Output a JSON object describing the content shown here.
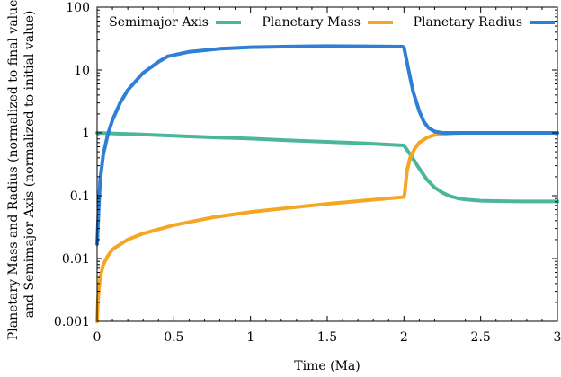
{
  "chart_data": {
    "type": "line",
    "title": "",
    "xlabel": "Time (Ma)",
    "ylabel_lines": [
      "Planetary Mass and Radius (normalized to final values)",
      "and Semimajor Axis (normalized to initial value)"
    ],
    "xlim": [
      0,
      3
    ],
    "ylim": [
      0.001,
      100
    ],
    "y_scale": "log",
    "grid": false,
    "legend_position": "top",
    "x_ticks": [
      {
        "value": 0,
        "label": "0"
      },
      {
        "value": 0.5,
        "label": "0.5"
      },
      {
        "value": 1,
        "label": "1"
      },
      {
        "value": 1.5,
        "label": "1.5"
      },
      {
        "value": 2,
        "label": "2"
      },
      {
        "value": 2.5,
        "label": "2.5"
      },
      {
        "value": 3,
        "label": "3"
      }
    ],
    "y_ticks": [
      {
        "value": 0.001,
        "label": "0.001"
      },
      {
        "value": 0.01,
        "label": "0.01"
      },
      {
        "value": 0.1,
        "label": "0.1"
      },
      {
        "value": 1,
        "label": "1"
      },
      {
        "value": 10,
        "label": "10"
      },
      {
        "value": 100,
        "label": "100"
      }
    ],
    "series": [
      {
        "name": "Semimajor Axis",
        "color": "#4bb69c",
        "x": [
          0,
          0.25,
          0.5,
          0.75,
          1.0,
          1.25,
          1.5,
          1.75,
          2.0,
          2.05,
          2.1,
          2.15,
          2.2,
          2.25,
          2.3,
          2.35,
          2.4,
          2.5,
          2.6,
          2.75,
          3.0
        ],
        "y": [
          1.0,
          0.95,
          0.9,
          0.85,
          0.81,
          0.76,
          0.72,
          0.68,
          0.63,
          0.42,
          0.27,
          0.18,
          0.135,
          0.112,
          0.098,
          0.091,
          0.087,
          0.083,
          0.082,
          0.081,
          0.081
        ]
      },
      {
        "name": "Planetary Mass",
        "color": "#f5a623",
        "x": [
          0.0,
          0.005,
          0.01,
          0.02,
          0.04,
          0.07,
          0.1,
          0.2,
          0.3,
          0.5,
          0.75,
          1.0,
          1.25,
          1.5,
          1.75,
          2.0,
          2.005,
          2.02,
          2.04,
          2.07,
          2.1,
          2.15,
          2.2,
          2.3,
          2.4,
          2.5,
          2.75,
          3.0
        ],
        "y": [
          0.001,
          0.002,
          0.003,
          0.005,
          0.008,
          0.011,
          0.014,
          0.02,
          0.025,
          0.034,
          0.045,
          0.055,
          0.064,
          0.074,
          0.084,
          0.095,
          0.11,
          0.25,
          0.4,
          0.56,
          0.7,
          0.84,
          0.93,
          0.98,
          1.0,
          1.0,
          1.0,
          1.0
        ]
      },
      {
        "name": "Planetary Radius",
        "color": "#2f7fd4",
        "x": [
          0.0,
          0.01,
          0.02,
          0.04,
          0.07,
          0.1,
          0.15,
          0.2,
          0.3,
          0.4,
          0.46,
          0.6,
          0.8,
          1.0,
          1.25,
          1.5,
          1.75,
          1.99,
          2.0,
          2.03,
          2.06,
          2.1,
          2.13,
          2.16,
          2.2,
          2.25,
          2.3,
          2.5,
          3.0
        ],
        "y": [
          0.017,
          0.06,
          0.18,
          0.45,
          0.95,
          1.6,
          3.0,
          4.8,
          9.0,
          13.5,
          16.5,
          19.5,
          21.8,
          23.0,
          23.6,
          24.0,
          23.8,
          23.5,
          23.0,
          10.0,
          4.5,
          2.2,
          1.5,
          1.2,
          1.05,
          1.0,
          1.0,
          1.0,
          1.0
        ]
      }
    ]
  }
}
